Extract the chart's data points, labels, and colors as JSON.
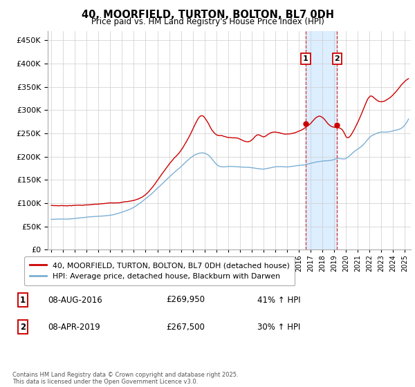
{
  "title": "40, MOORFIELD, TURTON, BOLTON, BL7 0DH",
  "subtitle": "Price paid vs. HM Land Registry's House Price Index (HPI)",
  "ylim": [
    0,
    470000
  ],
  "xlim_start": 1994.7,
  "xlim_end": 2025.5,
  "legend_line1": "40, MOORFIELD, TURTON, BOLTON, BL7 0DH (detached house)",
  "legend_line2": "HPI: Average price, detached house, Blackburn with Darwen",
  "transaction1_date": "08-AUG-2016",
  "transaction1_price": "£269,950",
  "transaction1_hpi": "41% ↑ HPI",
  "transaction2_date": "08-APR-2019",
  "transaction2_price": "£267,500",
  "transaction2_hpi": "30% ↑ HPI",
  "copyright": "Contains HM Land Registry data © Crown copyright and database right 2025.\nThis data is licensed under the Open Government Licence v3.0.",
  "red_color": "#cc0000",
  "blue_color": "#7bafd4",
  "highlight_color": "#ddeeff",
  "marker1_x": 2016.58,
  "marker2_x": 2019.25,
  "marker1_y": 269950,
  "marker2_y": 267500
}
